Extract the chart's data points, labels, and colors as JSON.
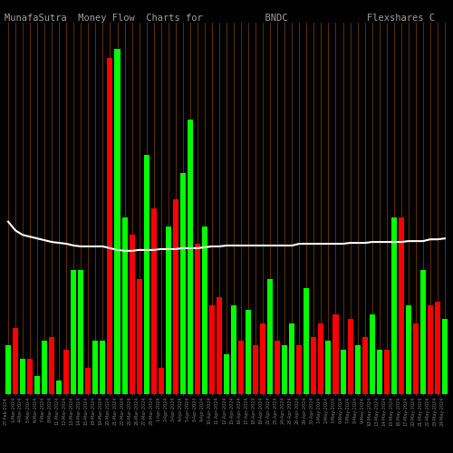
{
  "title": "MunafaSutra  Money Flow  Charts for           BNDC              Flexshares C",
  "background_color": "#000000",
  "bar_colors": [
    "#00ff00",
    "#ff0000",
    "#00ff00",
    "#ff0000",
    "#00ff00",
    "#00ff00",
    "#ff0000",
    "#00ff00",
    "#ff0000",
    "#00ff00",
    "#00ff00",
    "#ff0000",
    "#00ff00",
    "#00ff00",
    "#ff0000",
    "#00ff00",
    "#00ff00",
    "#ff0000",
    "#ff0000",
    "#00ff00",
    "#ff0000",
    "#ff0000",
    "#00ff00",
    "#ff0000",
    "#00ff00",
    "#00ff00",
    "#ff0000",
    "#00ff00",
    "#ff0000",
    "#ff0000",
    "#00ff00",
    "#00ff00",
    "#ff0000",
    "#00ff00",
    "#ff0000",
    "#ff0000",
    "#00ff00",
    "#ff0000",
    "#00ff00",
    "#00ff00",
    "#ff0000",
    "#00ff00",
    "#ff0000",
    "#ff0000",
    "#00ff00",
    "#ff0000",
    "#00ff00",
    "#ff0000",
    "#00ff00",
    "#ff0000",
    "#00ff00",
    "#00ff00",
    "#ff0000",
    "#00ff00",
    "#ff0000",
    "#00ff00",
    "#ff0000",
    "#00ff00",
    "#ff0000",
    "#ff0000",
    "#00ff00"
  ],
  "bar_heights": [
    55,
    75,
    40,
    40,
    20,
    60,
    65,
    15,
    50,
    140,
    140,
    30,
    60,
    60,
    380,
    390,
    200,
    180,
    130,
    270,
    210,
    30,
    190,
    220,
    250,
    310,
    170,
    190,
    100,
    110,
    45,
    100,
    60,
    95,
    55,
    80,
    130,
    60,
    55,
    80,
    55,
    120,
    65,
    80,
    60,
    90,
    50,
    85,
    55,
    65,
    90,
    50,
    50,
    200,
    200,
    100,
    80,
    140,
    100,
    105,
    85
  ],
  "line_values": [
    195,
    185,
    180,
    178,
    176,
    174,
    172,
    171,
    170,
    168,
    167,
    167,
    167,
    167,
    165,
    163,
    162,
    162,
    163,
    163,
    163,
    164,
    164,
    164,
    165,
    165,
    165,
    166,
    167,
    167,
    168,
    168,
    168,
    168,
    168,
    168,
    168,
    168,
    168,
    168,
    170,
    170,
    170,
    170,
    170,
    170,
    170,
    171,
    171,
    171,
    172,
    172,
    172,
    172,
    172,
    173,
    173,
    173,
    175,
    175,
    176
  ],
  "title_color": "#a0a0a0",
  "title_fontsize": 7.5,
  "bar_width": 0.75,
  "ylim": [
    0,
    420
  ],
  "line_color": "#ffffff",
  "line_width": 1.5,
  "vline_color": "#8B4500",
  "tick_label_color": "#808080",
  "tick_label_fontsize": 3.5,
  "labels": [
    "27-Feb-2024",
    "1-Mar-2024",
    "4-Mar-2024",
    "5-Mar-2024",
    "6-Mar-2024",
    "7-Mar-2024",
    "8-Mar-2024",
    "11-Mar-2024",
    "12-Mar-2024",
    "13-Mar-2024",
    "14-Mar-2024",
    "15-Mar-2024",
    "18-Mar-2024",
    "19-Mar-2024",
    "20-Mar-2024",
    "21-Mar-2024",
    "22-Mar-2024",
    "25-Mar-2024",
    "26-Mar-2024",
    "27-Mar-2024",
    "28-Mar-2024",
    "1-Apr-2024",
    "2-Apr-2024",
    "3-Apr-2024",
    "4-Apr-2024",
    "5-Apr-2024",
    "8-Apr-2024",
    "9-Apr-2024",
    "10-Apr-2024",
    "11-Apr-2024",
    "12-Apr-2024",
    "15-Apr-2024",
    "16-Apr-2024",
    "17-Apr-2024",
    "18-Apr-2024",
    "19-Apr-2024",
    "22-Apr-2024",
    "23-Apr-2024",
    "24-Apr-2024",
    "25-Apr-2024",
    "26-Apr-2024",
    "29-Apr-2024",
    "30-Apr-2024",
    "1-May-2024",
    "2-May-2024",
    "3-May-2024",
    "6-May-2024",
    "7-May-2024",
    "8-May-2024",
    "9-May-2024",
    "10-May-2024",
    "13-May-2024",
    "14-May-2024",
    "15-May-2024",
    "16-May-2024",
    "17-May-2024",
    "20-May-2024",
    "21-May-2024",
    "22-May-2024",
    "23-May-2024",
    "24-May-2024"
  ]
}
